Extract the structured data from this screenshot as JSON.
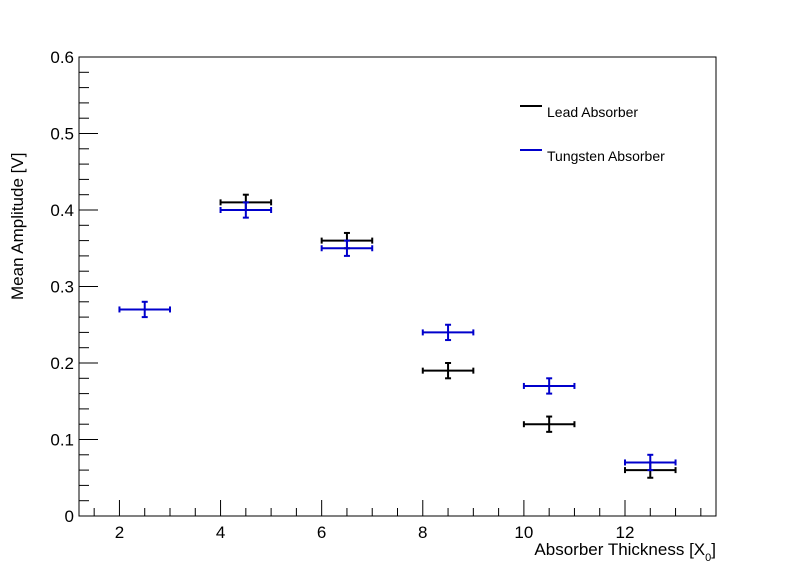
{
  "chart_data": {
    "type": "scatter",
    "xlabel_main": "Absorber Thickness [X",
    "xlabel_sub": "0",
    "xlabel_close": "]",
    "ylabel": "Mean Amplitude [V]",
    "xlim": [
      1.2,
      13.8
    ],
    "ylim": [
      0,
      0.6
    ],
    "x_ticks": [
      2,
      4,
      6,
      8,
      10,
      12
    ],
    "y_ticks": [
      0,
      0.1,
      0.2,
      0.3,
      0.4,
      0.5,
      0.6
    ],
    "y_tick_labels": [
      "0",
      "0.1",
      "0.2",
      "0.3",
      "0.4",
      "0.5",
      "0.6"
    ],
    "legend_position": "top-right",
    "series": [
      {
        "name": "Lead Absorber",
        "color": "#000000",
        "points": [
          {
            "x": 4.5,
            "y": 0.41,
            "xerr": 0.5,
            "yerr": 0.01
          },
          {
            "x": 6.5,
            "y": 0.36,
            "xerr": 0.5,
            "yerr": 0.01
          },
          {
            "x": 8.5,
            "y": 0.19,
            "xerr": 0.5,
            "yerr": 0.01
          },
          {
            "x": 10.5,
            "y": 0.12,
            "xerr": 0.5,
            "yerr": 0.01
          },
          {
            "x": 12.5,
            "y": 0.06,
            "xerr": 0.5,
            "yerr": 0.01
          }
        ]
      },
      {
        "name": "Tungsten Absorber",
        "color": "#0000cc",
        "points": [
          {
            "x": 2.5,
            "y": 0.27,
            "xerr": 0.5,
            "yerr": 0.01
          },
          {
            "x": 4.5,
            "y": 0.4,
            "xerr": 0.5,
            "yerr": 0.01
          },
          {
            "x": 6.5,
            "y": 0.35,
            "xerr": 0.5,
            "yerr": 0.01
          },
          {
            "x": 8.5,
            "y": 0.24,
            "xerr": 0.5,
            "yerr": 0.01
          },
          {
            "x": 10.5,
            "y": 0.17,
            "xerr": 0.5,
            "yerr": 0.01
          },
          {
            "x": 12.5,
            "y": 0.07,
            "xerr": 0.5,
            "yerr": 0.01
          }
        ]
      }
    ]
  }
}
